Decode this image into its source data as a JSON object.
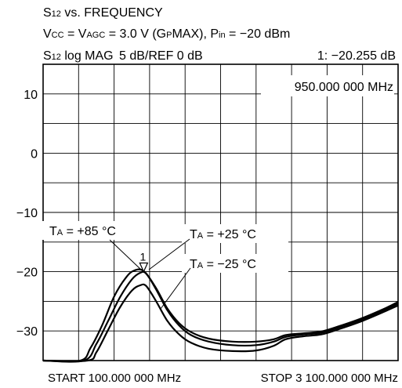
{
  "header": {
    "line1": {
      "main": "S",
      "sub": "12",
      "rest": " vs. FREQUENCY"
    },
    "line2": {
      "a": "V",
      "a_sub": "CC",
      "b": " = V",
      "b_sub": "AGC",
      "c": " = 3.0 V (G",
      "c_sub": "P",
      "d": "MAX), P",
      "d_sub": "in",
      "e": " = −20 dBm"
    },
    "line3": {
      "main": "S",
      "sub": "12",
      "rest": " log MAG",
      "scale": "5 dB/REF 0 dB",
      "marker": "1: −20.255 dB"
    }
  },
  "marker_frequency": "950.000 000 MHz",
  "marker_label": "1",
  "start_label": "START 100.000 000 MHz",
  "stop_label": "STOP 3 100.000 000 MHz",
  "annotations": [
    {
      "pre": "T",
      "sub": "A",
      "post": " = +85 °C"
    },
    {
      "pre": "T",
      "sub": "A",
      "post": " = +25 °C"
    },
    {
      "pre": "T",
      "sub": "A",
      "post": " = −25 °C"
    }
  ],
  "chart_data": {
    "type": "line",
    "title": "S12 vs. FREQUENCY",
    "xlabel": "",
    "ylabel": "",
    "xlim": [
      100,
      3100
    ],
    "ylim": [
      -35,
      15
    ],
    "y_ticks": [
      10,
      0,
      -10,
      -20,
      -30
    ],
    "y_tick_labels": [
      "10",
      "0",
      "−10",
      "−20",
      "−30"
    ],
    "grid": true,
    "marker": {
      "x": 950,
      "y": -20.255,
      "label": "1"
    },
    "series": [
      {
        "name": "TA = +85 °C",
        "x": [
          100,
          415,
          500,
          600,
          700,
          800,
          870,
          950,
          1050,
          1150,
          1250,
          1350,
          1500,
          1700,
          1900,
          2050,
          2150,
          2300,
          2450,
          2600,
          2800,
          3000,
          3100
        ],
        "y": [
          -35,
          -35,
          -32.9,
          -29,
          -24.2,
          -21,
          -19.8,
          -19.9,
          -22.6,
          -26.2,
          -28.7,
          -30.2,
          -31.3,
          -31.8,
          -31.8,
          -31.4,
          -30.7,
          -30.4,
          -30.1,
          -29.2,
          -27.8,
          -26.1,
          -25.1
        ]
      },
      {
        "name": "TA = +25 °C",
        "x": [
          100,
          445,
          550,
          650,
          750,
          850,
          920,
          970,
          1050,
          1150,
          1250,
          1350,
          1500,
          1700,
          1900,
          2050,
          2150,
          2300,
          2450,
          2600,
          2800,
          3000,
          3100
        ],
        "y": [
          -35,
          -35,
          -32.2,
          -28.3,
          -24.3,
          -21.3,
          -20.2,
          -20.3,
          -22.8,
          -26.5,
          -29.1,
          -30.7,
          -31.8,
          -32.4,
          -32.4,
          -31.8,
          -31.0,
          -30.6,
          -30.3,
          -29.4,
          -28.0,
          -26.3,
          -25.4
        ]
      },
      {
        "name": "TA = −25 °C",
        "x": [
          100,
          475,
          550,
          650,
          750,
          850,
          920,
          970,
          1050,
          1150,
          1250,
          1350,
          1500,
          1700,
          1900,
          2050,
          2150,
          2300,
          2450,
          2600,
          2800,
          3000,
          3100
        ],
        "y": [
          -35,
          -35,
          -33.6,
          -29.8,
          -26.0,
          -23.2,
          -22.3,
          -22.4,
          -24.8,
          -28.3,
          -30.6,
          -32.0,
          -33.0,
          -33.4,
          -33.3,
          -32.5,
          -31.4,
          -30.9,
          -30.6,
          -29.7,
          -28.3,
          -26.6,
          -25.7
        ]
      }
    ]
  }
}
